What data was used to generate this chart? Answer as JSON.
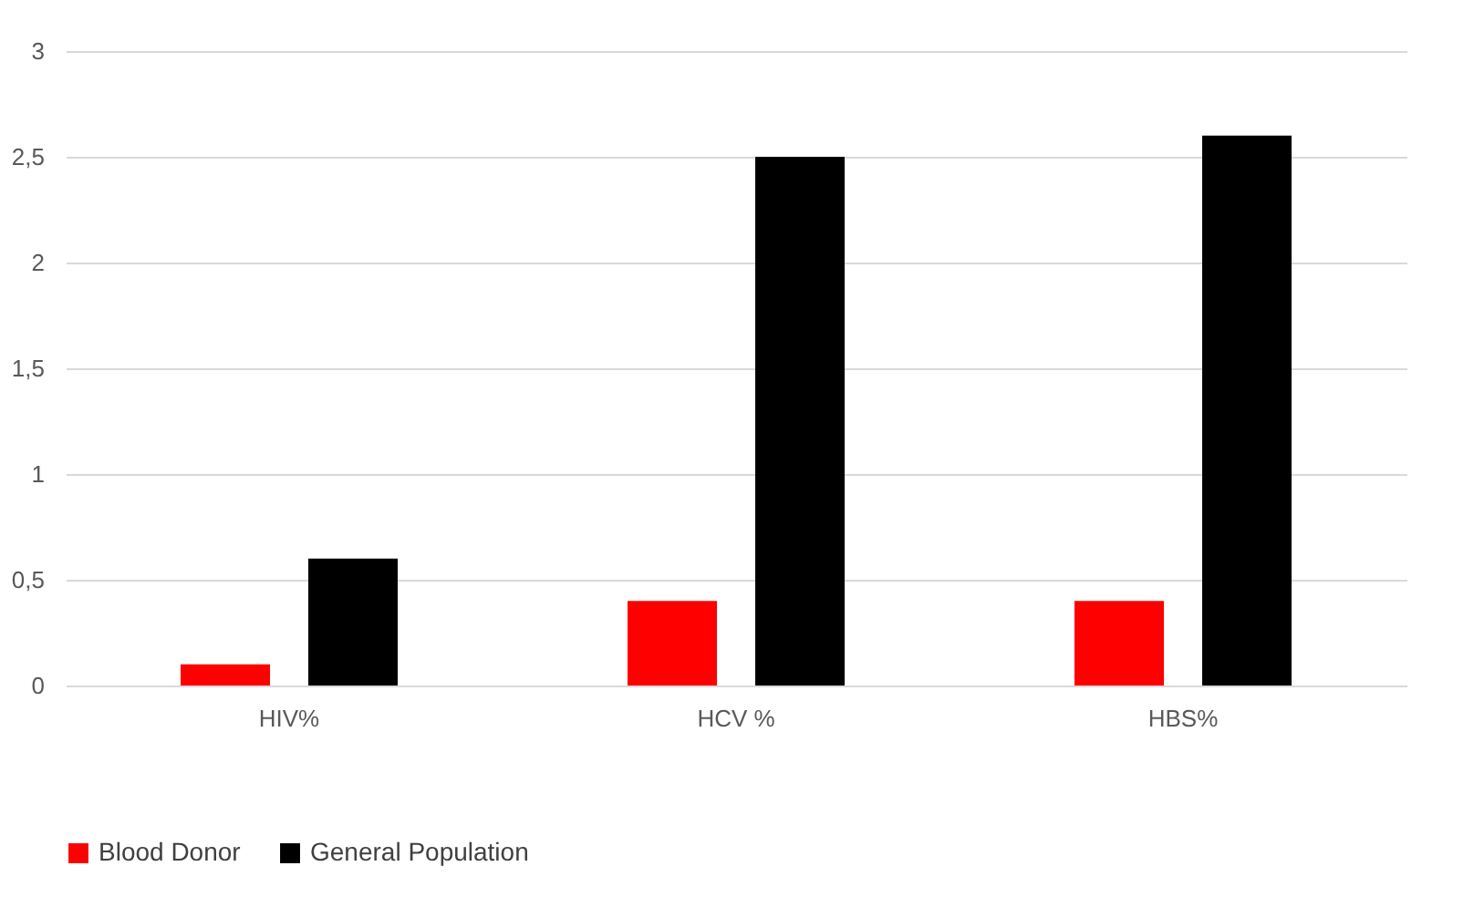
{
  "chart_data": {
    "type": "bar",
    "categories": [
      "HIV%",
      "HCV %",
      "HBS%"
    ],
    "series": [
      {
        "name": "Blood Donor",
        "color": "#ff0000",
        "values": [
          0.1,
          0.4,
          0.4
        ]
      },
      {
        "name": "General Population",
        "color": "#000000",
        "values": [
          0.6,
          2.5,
          2.6
        ]
      }
    ],
    "ylim": [
      0,
      3
    ],
    "yticks": [
      0,
      {
        "value": 0.5,
        "label": "0,5"
      },
      1,
      {
        "value": 1.5,
        "label": "1,5"
      },
      2,
      {
        "value": 2.5,
        "label": "2,5"
      },
      3
    ],
    "grid": "y",
    "legend": "bottom"
  }
}
